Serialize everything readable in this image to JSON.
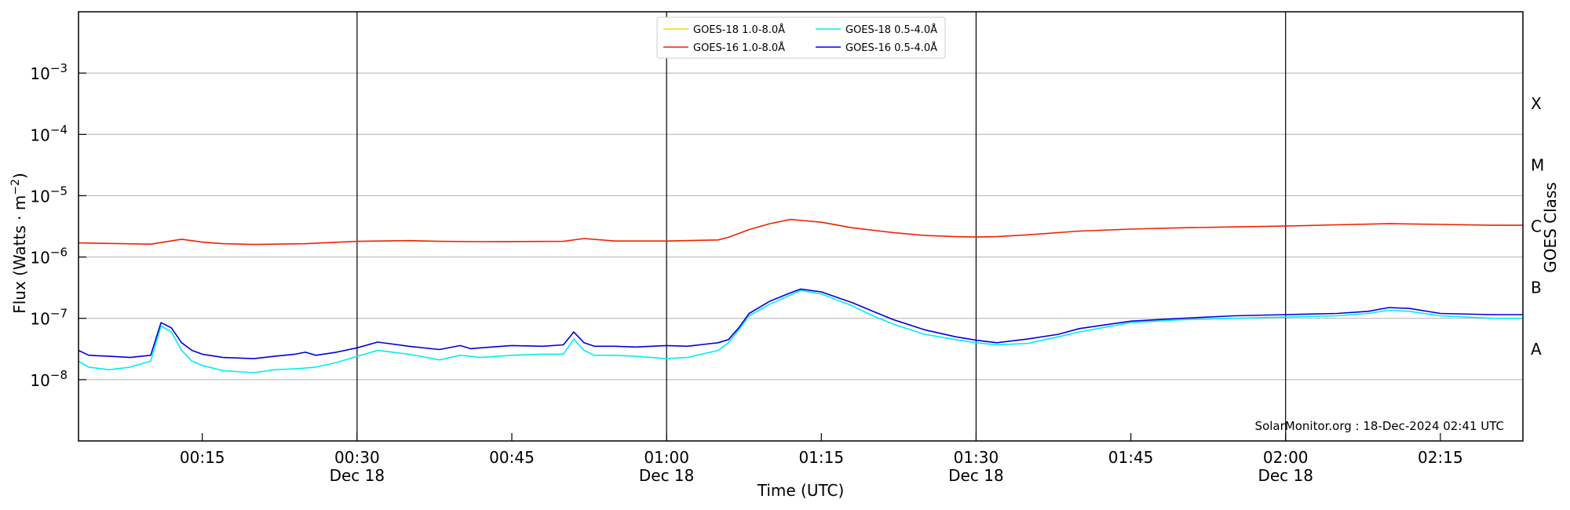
{
  "chart_data": {
    "type": "line",
    "title": "",
    "xlabel": "Time (UTC)",
    "ylabel": "Flux (Watts · m",
    "ylabel_sup": "−2",
    "ylabel_close": ")",
    "y_scale": "log",
    "ylim": [
      1e-09,
      0.01
    ],
    "xlim_minutes_after_midnight": [
      3,
      143
    ],
    "y_ticks": [
      {
        "base": "10",
        "exp": "−8"
      },
      {
        "base": "10",
        "exp": "−7"
      },
      {
        "base": "10",
        "exp": "−6"
      },
      {
        "base": "10",
        "exp": "−5"
      },
      {
        "base": "10",
        "exp": "−4"
      },
      {
        "base": "10",
        "exp": "−3"
      }
    ],
    "x_ticks": [
      {
        "time": "00:15",
        "date": ""
      },
      {
        "time": "00:30",
        "date": "Dec 18"
      },
      {
        "time": "00:45",
        "date": ""
      },
      {
        "time": "01:00",
        "date": "Dec 18"
      },
      {
        "time": "01:15",
        "date": ""
      },
      {
        "time": "01:30",
        "date": "Dec 18"
      },
      {
        "time": "01:45",
        "date": ""
      },
      {
        "time": "02:00",
        "date": "Dec 18"
      },
      {
        "time": "02:15",
        "date": ""
      }
    ],
    "grid": "horizontal",
    "secondary_axis": {
      "label": "GOES Class",
      "classes": [
        "A",
        "B",
        "C",
        "M",
        "X"
      ]
    },
    "legend_position": "top-center",
    "credit": "SolarMonitor.org : 18-Dec-2024 02:41 UTC",
    "series": [
      {
        "name": "GOES-18 1.0-8.0Å",
        "color": "#ffd700",
        "x": [],
        "y": []
      },
      {
        "name": "GOES-16 1.0-8.0Å",
        "color": "#ee2200",
        "x": [
          3,
          10,
          13,
          15,
          17,
          20,
          25,
          30,
          35,
          38,
          42,
          50,
          52,
          55,
          60,
          65,
          66,
          68,
          70,
          72,
          75,
          78,
          82,
          85,
          88,
          90,
          92,
          95,
          100,
          105,
          110,
          115,
          120,
          125,
          130,
          135,
          140,
          143
        ],
        "y": [
          1.7e-06,
          1.62e-06,
          1.95e-06,
          1.75e-06,
          1.65e-06,
          1.6e-06,
          1.65e-06,
          1.8e-06,
          1.85e-06,
          1.8e-06,
          1.78e-06,
          1.8e-06,
          2e-06,
          1.82e-06,
          1.82e-06,
          1.9e-06,
          2.1e-06,
          2.8e-06,
          3.5e-06,
          4.1e-06,
          3.7e-06,
          3e-06,
          2.5e-06,
          2.25e-06,
          2.15e-06,
          2.12e-06,
          2.15e-06,
          2.3e-06,
          2.65e-06,
          2.85e-06,
          3e-06,
          3.1e-06,
          3.2e-06,
          3.35e-06,
          3.5e-06,
          3.4e-06,
          3.3e-06,
          3.3e-06
        ]
      },
      {
        "name": "GOES-18 0.5-4.0Å",
        "color": "#00eeee",
        "x": [
          3,
          4,
          6,
          8,
          10,
          11,
          12,
          13,
          14,
          15,
          17,
          20,
          22,
          24,
          26,
          28,
          30,
          32,
          35,
          38,
          40,
          42,
          45,
          48,
          50,
          51,
          52,
          53,
          55,
          57,
          60,
          62,
          65,
          66,
          67,
          68,
          70,
          72,
          73,
          75,
          78,
          80,
          82,
          85,
          88,
          90,
          92,
          95,
          98,
          100,
          105,
          110,
          115,
          120,
          125,
          128,
          130,
          132,
          135,
          140,
          143
        ],
        "y": [
          2e-08,
          1.6e-08,
          1.45e-08,
          1.6e-08,
          2e-08,
          7.5e-08,
          6e-08,
          3e-08,
          2e-08,
          1.7e-08,
          1.4e-08,
          1.3e-08,
          1.45e-08,
          1.5e-08,
          1.6e-08,
          1.9e-08,
          2.4e-08,
          3e-08,
          2.6e-08,
          2.1e-08,
          2.5e-08,
          2.3e-08,
          2.5e-08,
          2.6e-08,
          2.6e-08,
          4.6e-08,
          3e-08,
          2.5e-08,
          2.5e-08,
          2.4e-08,
          2.2e-08,
          2.3e-08,
          3e-08,
          4e-08,
          6.5e-08,
          1.1e-07,
          1.7e-07,
          2.4e-07,
          2.85e-07,
          2.5e-07,
          1.6e-07,
          1.1e-07,
          8e-08,
          5.5e-08,
          4.5e-08,
          4e-08,
          3.7e-08,
          3.9e-08,
          5e-08,
          6e-08,
          8.5e-08,
          9.5e-08,
          1e-07,
          1.05e-07,
          1.1e-07,
          1.2e-07,
          1.35e-07,
          1.3e-07,
          1.1e-07,
          1e-07,
          1e-07
        ]
      },
      {
        "name": "GOES-16 0.5-4.0Å",
        "color": "#0000dd",
        "x": [
          3,
          4,
          6,
          8,
          10,
          11,
          12,
          13,
          14,
          15,
          17,
          20,
          22,
          24,
          25,
          26,
          28,
          30,
          32,
          35,
          38,
          40,
          41,
          42,
          45,
          48,
          50,
          51,
          52,
          53,
          55,
          57,
          60,
          62,
          65,
          66,
          67,
          68,
          70,
          72,
          73,
          75,
          78,
          80,
          82,
          85,
          88,
          90,
          92,
          95,
          98,
          100,
          105,
          110,
          115,
          120,
          125,
          128,
          130,
          132,
          135,
          140,
          143
        ],
        "y": [
          3e-08,
          2.5e-08,
          2.4e-08,
          2.3e-08,
          2.5e-08,
          8.5e-08,
          7e-08,
          4e-08,
          3e-08,
          2.6e-08,
          2.3e-08,
          2.2e-08,
          2.4e-08,
          2.6e-08,
          2.8e-08,
          2.5e-08,
          2.8e-08,
          3.3e-08,
          4.1e-08,
          3.5e-08,
          3.1e-08,
          3.6e-08,
          3.2e-08,
          3.3e-08,
          3.6e-08,
          3.5e-08,
          3.7e-08,
          6e-08,
          4e-08,
          3.5e-08,
          3.5e-08,
          3.4e-08,
          3.6e-08,
          3.5e-08,
          4e-08,
          4.5e-08,
          7e-08,
          1.2e-07,
          1.9e-07,
          2.6e-07,
          3e-07,
          2.7e-07,
          1.8e-07,
          1.3e-07,
          9.5e-08,
          6.5e-08,
          5e-08,
          4.4e-08,
          4e-08,
          4.6e-08,
          5.5e-08,
          6.8e-08,
          9e-08,
          1e-07,
          1.1e-07,
          1.15e-07,
          1.2e-07,
          1.3e-07,
          1.5e-07,
          1.45e-07,
          1.2e-07,
          1.15e-07,
          1.15e-07
        ]
      }
    ]
  }
}
